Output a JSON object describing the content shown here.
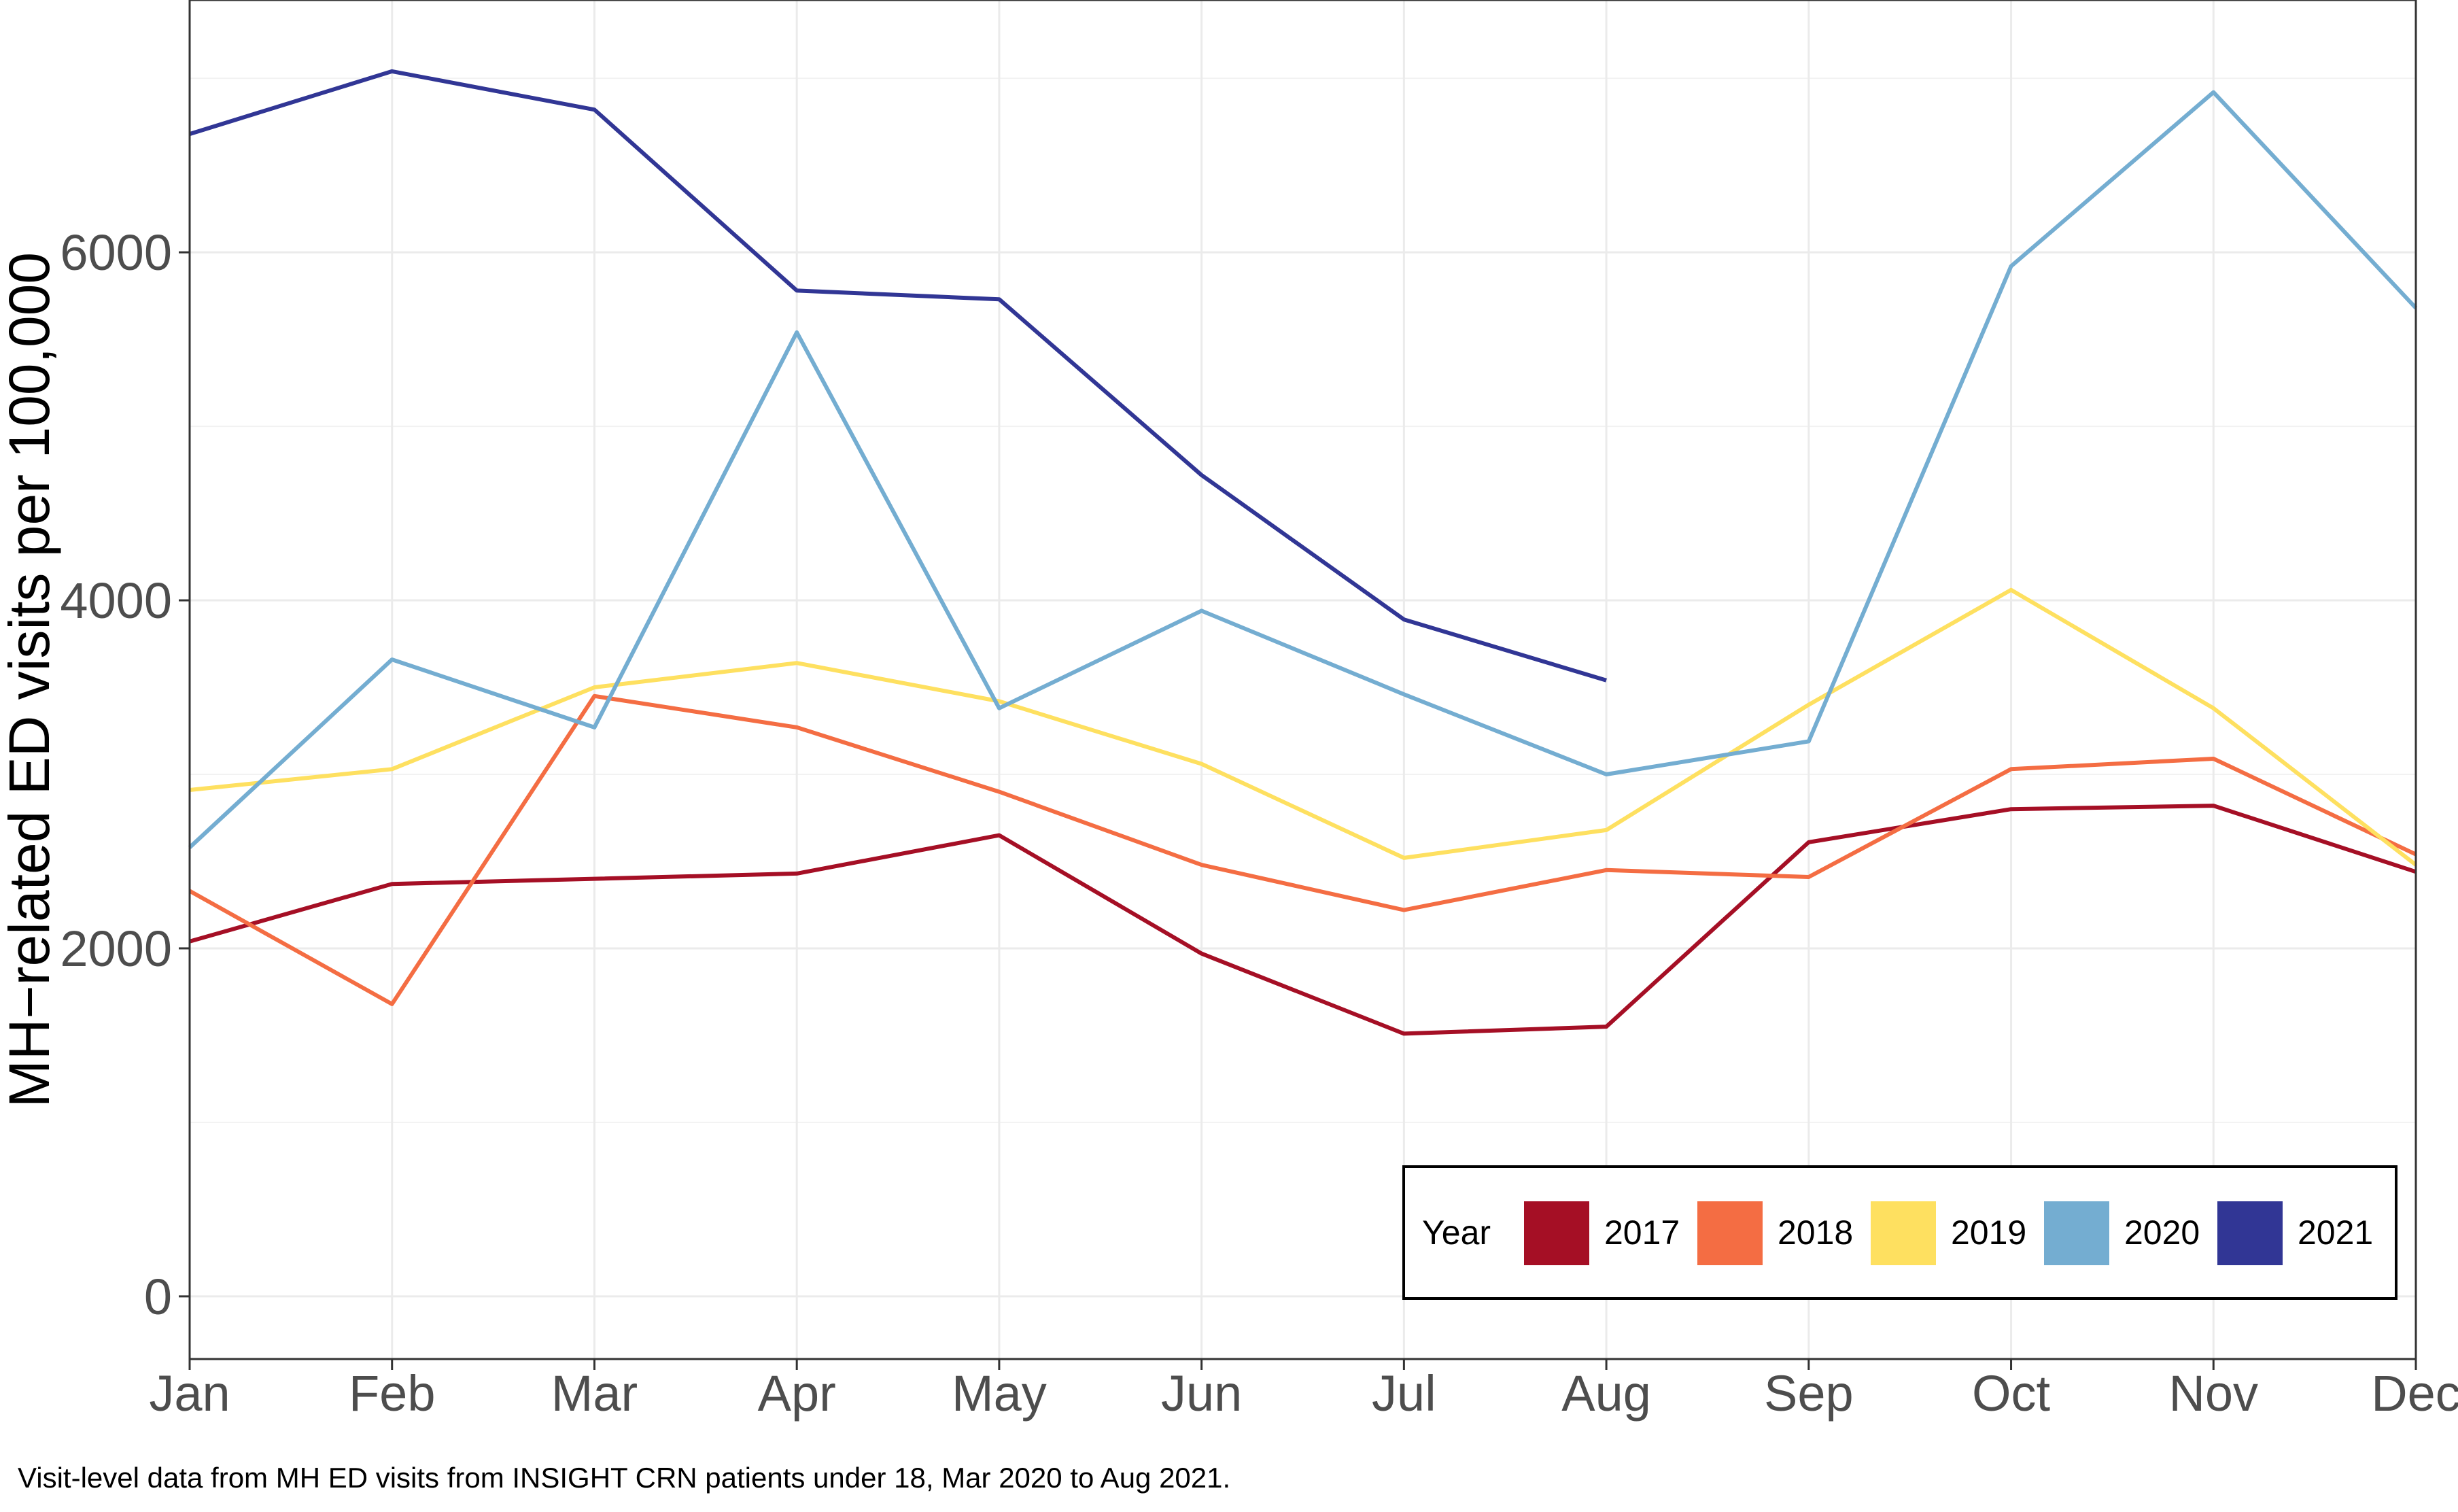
{
  "caption": "Visit-level data from MH ED visits from INSIGHT CRN patients under 18, Mar 2020 to Aug 2021.",
  "chart_data": {
    "type": "line",
    "title": "",
    "xlabel": "",
    "ylabel": "MH−related ED visits per 100,000",
    "categories": [
      "Jan",
      "Feb",
      "Mar",
      "Apr",
      "May",
      "Jun",
      "Jul",
      "Aug",
      "Sep",
      "Oct",
      "Nov",
      "Dec"
    ],
    "ylim": [
      -360,
      7450
    ],
    "yticks": [
      0,
      2000,
      4000,
      6000
    ],
    "y_labels": [
      "0",
      "2000",
      "4000",
      "6000"
    ],
    "grid": true,
    "legend": {
      "title": "Year",
      "position": "bottom-right",
      "orientation": "horizontal"
    },
    "series": [
      {
        "name": "2017",
        "color": "#a50f25",
        "values": [
          2040,
          2370,
          2400,
          2430,
          2650,
          1970,
          1510,
          1550,
          2610,
          2800,
          2820,
          2440
        ]
      },
      {
        "name": "2018",
        "color": "#f46d43",
        "values": [
          2330,
          1680,
          3450,
          3270,
          2900,
          2480,
          2220,
          2450,
          2410,
          3030,
          3090,
          2540
        ]
      },
      {
        "name": "2019",
        "color": "#fee060",
        "values": [
          2910,
          3030,
          3500,
          3640,
          3420,
          3060,
          2520,
          2680,
          3400,
          4060,
          3380,
          2480
        ]
      },
      {
        "name": "2020",
        "color": "#74add1",
        "values": [
          2580,
          3660,
          3270,
          5540,
          3380,
          3940,
          3460,
          3000,
          3190,
          5920,
          6920,
          5680
        ]
      },
      {
        "name": "2021",
        "color": "#313695",
        "values": [
          6680,
          7040,
          6820,
          5780,
          5730,
          4720,
          3890,
          3540,
          null,
          null,
          null,
          null
        ]
      }
    ]
  }
}
